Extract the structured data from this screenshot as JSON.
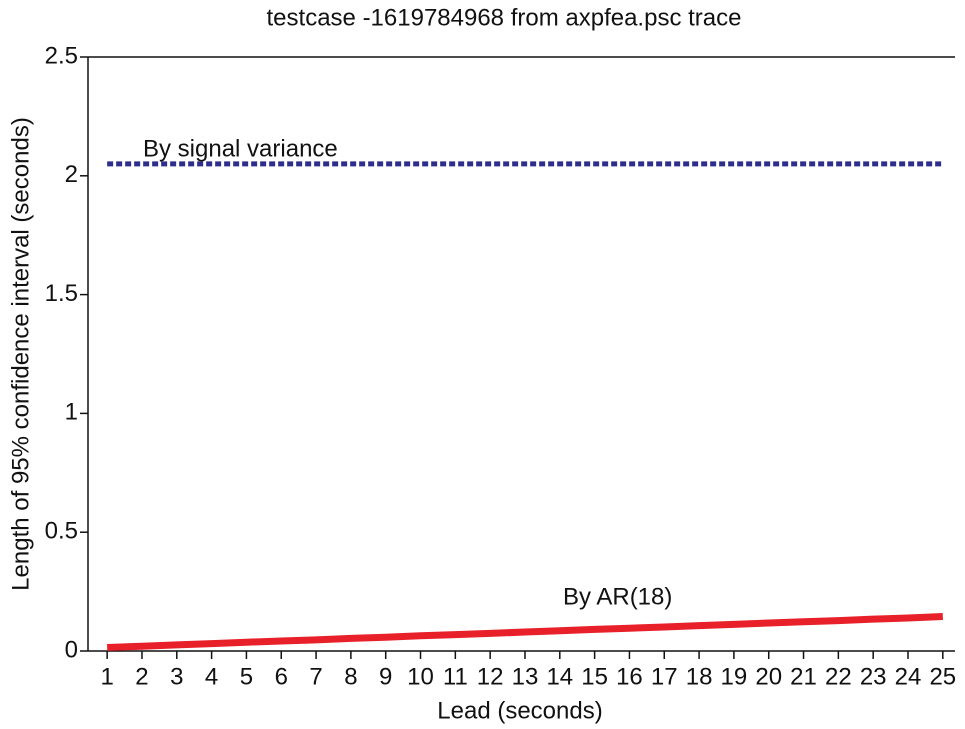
{
  "chart_data": {
    "type": "line",
    "title": "testcase -1619784968 from axpfea.psc trace",
    "x_label": "Lead (seconds)",
    "y_label": "Length of 95% confidence interval (seconds)",
    "x": [
      1,
      2,
      3,
      4,
      5,
      6,
      7,
      8,
      9,
      10,
      11,
      12,
      13,
      14,
      15,
      16,
      17,
      18,
      19,
      20,
      21,
      22,
      23,
      24,
      25
    ],
    "series": [
      {
        "name": "By signal variance",
        "color": "#2e2f8c",
        "dash": true,
        "values": [
          2.05,
          2.05,
          2.05,
          2.05,
          2.05,
          2.05,
          2.05,
          2.05,
          2.05,
          2.05,
          2.05,
          2.05,
          2.05,
          2.05,
          2.05,
          2.05,
          2.05,
          2.05,
          2.05,
          2.05,
          2.05,
          2.05,
          2.05,
          2.05,
          2.05
        ]
      },
      {
        "name": "By AR(18)",
        "color": "#e8202a",
        "dash": false,
        "values": [
          0.015,
          0.02,
          0.026,
          0.031,
          0.037,
          0.042,
          0.047,
          0.053,
          0.058,
          0.064,
          0.069,
          0.074,
          0.08,
          0.085,
          0.091,
          0.096,
          0.101,
          0.107,
          0.112,
          0.118,
          0.123,
          0.128,
          0.134,
          0.139,
          0.145
        ]
      }
    ],
    "xlim": [
      0.45,
      25.35
    ],
    "xticks": [
      1,
      2,
      3,
      4,
      5,
      6,
      7,
      8,
      9,
      10,
      11,
      12,
      13,
      14,
      15,
      16,
      17,
      18,
      19,
      20,
      21,
      22,
      23,
      24,
      25
    ],
    "ylim": [
      0,
      2.5
    ],
    "yticks": [
      0,
      0.5,
      1,
      1.5,
      2,
      2.5
    ],
    "grid": false
  }
}
